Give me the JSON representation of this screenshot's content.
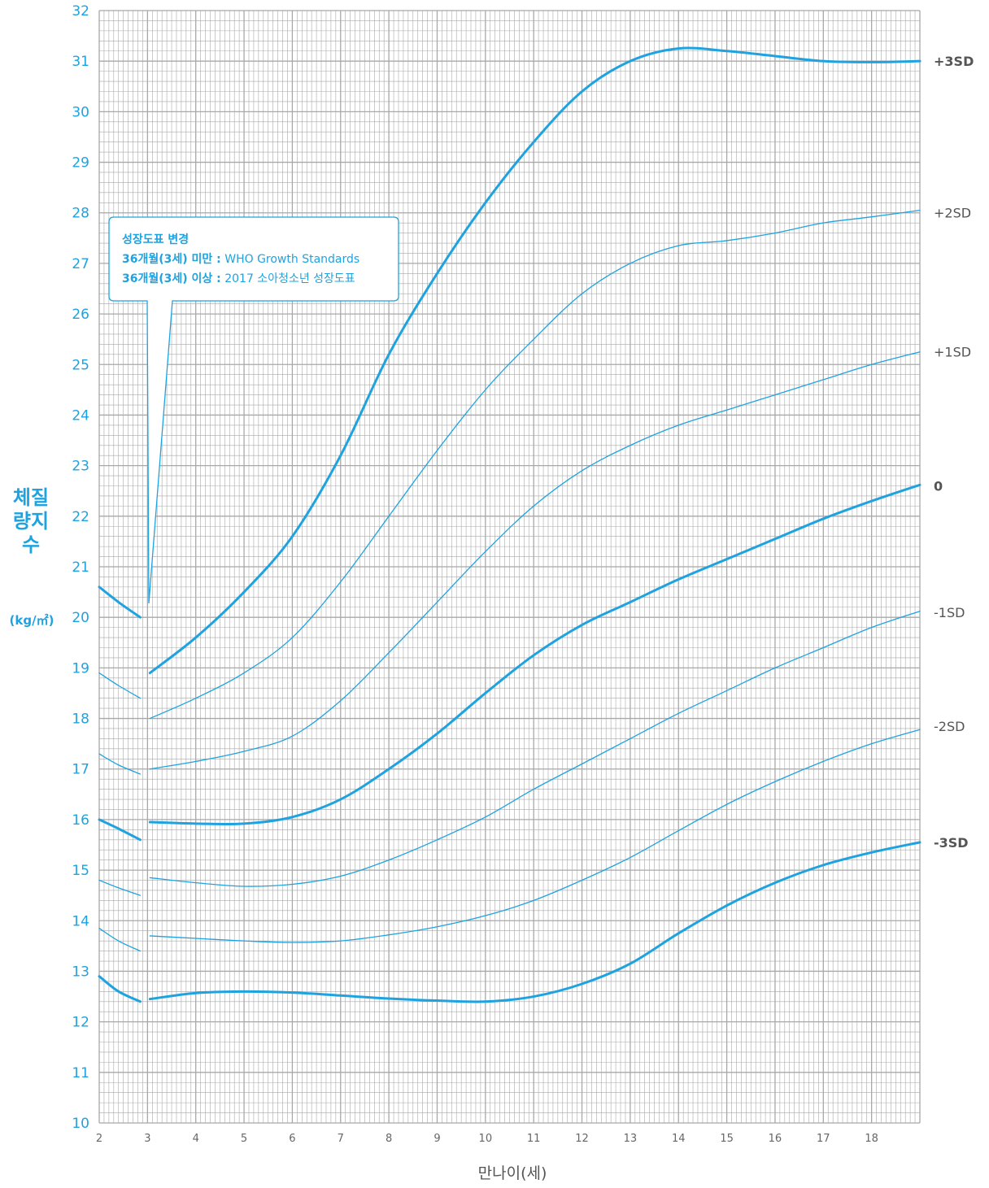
{
  "chart_data": {
    "type": "line",
    "ylabel": "체질량지수",
    "yunit": "(kg/㎡)",
    "xlabel": "만나이(세)",
    "xlim": [
      2,
      19
    ],
    "ylim": [
      10,
      32
    ],
    "x_ticks": [
      2,
      3,
      4,
      5,
      6,
      7,
      8,
      9,
      10,
      11,
      12,
      13,
      14,
      15,
      16,
      17,
      18
    ],
    "y_ticks": [
      10,
      11,
      12,
      13,
      14,
      15,
      16,
      17,
      18,
      19,
      20,
      21,
      22,
      23,
      24,
      25,
      26,
      27,
      28,
      29,
      30,
      31,
      32
    ],
    "grid": true,
    "accent_color": "#1ea3e0",
    "grid_color": "#a8a8a8",
    "series_under3": [
      {
        "values": [
          [
            2.0,
            20.6
          ],
          [
            2.4,
            20.3
          ],
          [
            2.85,
            20.0
          ]
        ]
      },
      {
        "values": [
          [
            2.0,
            18.9
          ],
          [
            2.4,
            18.65
          ],
          [
            2.85,
            18.4
          ]
        ]
      },
      {
        "values": [
          [
            2.0,
            17.3
          ],
          [
            2.4,
            17.08
          ],
          [
            2.85,
            16.9
          ]
        ]
      },
      {
        "values": [
          [
            2.0,
            16.0
          ],
          [
            2.4,
            15.82
          ],
          [
            2.85,
            15.6
          ]
        ]
      },
      {
        "values": [
          [
            2.0,
            14.8
          ],
          [
            2.4,
            14.65
          ],
          [
            2.85,
            14.5
          ]
        ]
      },
      {
        "values": [
          [
            2.0,
            13.85
          ],
          [
            2.4,
            13.6
          ],
          [
            2.85,
            13.4
          ]
        ]
      },
      {
        "values": [
          [
            2.0,
            12.9
          ],
          [
            2.4,
            12.6
          ],
          [
            2.85,
            12.4
          ]
        ]
      }
    ],
    "series": [
      {
        "name": "+3SD",
        "values": [
          [
            3.05,
            18.9
          ],
          [
            4,
            19.6
          ],
          [
            5,
            20.5
          ],
          [
            6,
            21.6
          ],
          [
            7,
            23.2
          ],
          [
            8,
            25.2
          ],
          [
            9,
            26.8
          ],
          [
            10,
            28.2
          ],
          [
            11,
            29.4
          ],
          [
            12,
            30.4
          ],
          [
            13,
            31.0
          ],
          [
            14,
            31.25
          ],
          [
            15,
            31.2
          ],
          [
            16,
            31.1
          ],
          [
            17,
            31.0
          ],
          [
            18,
            30.98
          ],
          [
            19,
            31.0
          ]
        ]
      },
      {
        "name": "+2SD",
        "values": [
          [
            3.05,
            18.0
          ],
          [
            4,
            18.4
          ],
          [
            5,
            18.9
          ],
          [
            6,
            19.6
          ],
          [
            7,
            20.7
          ],
          [
            8,
            22.0
          ],
          [
            9,
            23.3
          ],
          [
            10,
            24.5
          ],
          [
            11,
            25.5
          ],
          [
            12,
            26.4
          ],
          [
            13,
            27.0
          ],
          [
            14,
            27.35
          ],
          [
            15,
            27.45
          ],
          [
            16,
            27.6
          ],
          [
            17,
            27.8
          ],
          [
            18,
            27.92
          ],
          [
            19,
            28.05
          ]
        ]
      },
      {
        "name": "+1SD",
        "values": [
          [
            3.05,
            17.0
          ],
          [
            4,
            17.15
          ],
          [
            5,
            17.35
          ],
          [
            6,
            17.65
          ],
          [
            7,
            18.35
          ],
          [
            8,
            19.3
          ],
          [
            9,
            20.3
          ],
          [
            10,
            21.3
          ],
          [
            11,
            22.2
          ],
          [
            12,
            22.9
          ],
          [
            13,
            23.4
          ],
          [
            14,
            23.8
          ],
          [
            15,
            24.1
          ],
          [
            16,
            24.4
          ],
          [
            17,
            24.7
          ],
          [
            18,
            25.0
          ],
          [
            19,
            25.25
          ]
        ]
      },
      {
        "name": "0",
        "values": [
          [
            3.05,
            15.95
          ],
          [
            4,
            15.92
          ],
          [
            5,
            15.92
          ],
          [
            6,
            16.05
          ],
          [
            7,
            16.4
          ],
          [
            8,
            17.0
          ],
          [
            9,
            17.7
          ],
          [
            10,
            18.5
          ],
          [
            11,
            19.25
          ],
          [
            12,
            19.85
          ],
          [
            13,
            20.3
          ],
          [
            14,
            20.75
          ],
          [
            15,
            21.15
          ],
          [
            16,
            21.55
          ],
          [
            17,
            21.95
          ],
          [
            18,
            22.3
          ],
          [
            19,
            22.62
          ]
        ]
      },
      {
        "name": "-1SD",
        "values": [
          [
            3.05,
            14.85
          ],
          [
            4,
            14.75
          ],
          [
            5,
            14.68
          ],
          [
            6,
            14.72
          ],
          [
            7,
            14.88
          ],
          [
            8,
            15.2
          ],
          [
            9,
            15.6
          ],
          [
            10,
            16.05
          ],
          [
            11,
            16.6
          ],
          [
            12,
            17.1
          ],
          [
            13,
            17.6
          ],
          [
            14,
            18.1
          ],
          [
            15,
            18.55
          ],
          [
            16,
            19.0
          ],
          [
            17,
            19.4
          ],
          [
            18,
            19.8
          ],
          [
            19,
            20.12
          ]
        ]
      },
      {
        "name": "-2SD",
        "values": [
          [
            3.05,
            13.7
          ],
          [
            4,
            13.65
          ],
          [
            5,
            13.6
          ],
          [
            6,
            13.57
          ],
          [
            7,
            13.6
          ],
          [
            8,
            13.72
          ],
          [
            9,
            13.88
          ],
          [
            10,
            14.1
          ],
          [
            11,
            14.4
          ],
          [
            12,
            14.8
          ],
          [
            13,
            15.25
          ],
          [
            14,
            15.78
          ],
          [
            15,
            16.3
          ],
          [
            16,
            16.75
          ],
          [
            17,
            17.15
          ],
          [
            18,
            17.5
          ],
          [
            19,
            17.78
          ]
        ]
      },
      {
        "name": "-3SD",
        "values": [
          [
            3.05,
            12.45
          ],
          [
            4,
            12.57
          ],
          [
            5,
            12.6
          ],
          [
            6,
            12.58
          ],
          [
            7,
            12.52
          ],
          [
            8,
            12.46
          ],
          [
            9,
            12.42
          ],
          [
            10,
            12.4
          ],
          [
            11,
            12.5
          ],
          [
            12,
            12.75
          ],
          [
            13,
            13.15
          ],
          [
            14,
            13.75
          ],
          [
            15,
            14.3
          ],
          [
            16,
            14.75
          ],
          [
            17,
            15.1
          ],
          [
            18,
            15.35
          ],
          [
            19,
            15.55
          ]
        ]
      }
    ],
    "side_labels": [
      {
        "text": "+3SD",
        "y": 31.0,
        "bold": true
      },
      {
        "text": "+2SD",
        "y": 28.0,
        "bold": false
      },
      {
        "text": "+1SD",
        "y": 25.25,
        "bold": false
      },
      {
        "text": "0",
        "y": 22.6,
        "bold": true
      },
      {
        "text": "-1SD",
        "y": 20.1,
        "bold": false
      },
      {
        "text": "-2SD",
        "y": 17.85,
        "bold": false
      },
      {
        "text": "-3SD",
        "y": 15.55,
        "bold": true
      }
    ],
    "bold_series": [
      "+3SD",
      "0",
      "-3SD"
    ]
  },
  "note": {
    "title": "성장도표 변경",
    "line1_key": "36개월(3세) 미만 :",
    "line1_value": " WHO Growth Standards",
    "line2_key": "36개월(3세) 이상 :",
    "line2_value": " 2017 소아청소년 성장도표"
  }
}
